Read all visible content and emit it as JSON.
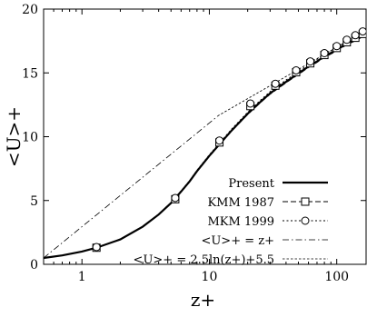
{
  "chart_data": {
    "type": "line",
    "xlabel": "z+",
    "ylabel": "<U>+",
    "xscale": "log",
    "xlim": [
      0.5,
      170
    ],
    "ylim": [
      0,
      20
    ],
    "xticks": [
      1,
      10,
      100
    ],
    "yticks": [
      0,
      5,
      10,
      15,
      20
    ],
    "grid": false,
    "legend_position": "bottom-right",
    "series": [
      {
        "name": "Present",
        "style": "solid-thick",
        "x": [
          0.5,
          0.7,
          1.0,
          1.3,
          2.0,
          3.0,
          4.0,
          5.0,
          6.0,
          7.0,
          8.0,
          10.0,
          12.0,
          15.0,
          20.0,
          25.0,
          30.0,
          40.0,
          50.0,
          60.0,
          70.0,
          80.0,
          100.0,
          120.0,
          140.0,
          165.0
        ],
        "y": [
          0.5,
          0.7,
          1.0,
          1.3,
          1.95,
          2.95,
          3.9,
          4.8,
          5.7,
          6.5,
          7.3,
          8.5,
          9.4,
          10.5,
          11.8,
          12.7,
          13.4,
          14.3,
          14.95,
          15.5,
          15.9,
          16.3,
          16.8,
          17.3,
          17.6,
          18.0
        ]
      },
      {
        "name": "KMM 1987",
        "style": "dashed-square",
        "marker_x": [
          1.3,
          5.4,
          12.0,
          21.0,
          33.0,
          48.0,
          62.0,
          80.0,
          100.0,
          120.0,
          140.0,
          160.0
        ],
        "marker_y": [
          1.3,
          5.1,
          9.55,
          12.4,
          14.0,
          15.05,
          15.75,
          16.4,
          16.95,
          17.4,
          17.75,
          18.05
        ]
      },
      {
        "name": "MKM 1999",
        "style": "dotted-circle",
        "marker_x": [
          1.3,
          5.4,
          12.0,
          21.0,
          33.0,
          48.0,
          62.0,
          80.0,
          100.0,
          120.0,
          140.0,
          160.0
        ],
        "marker_y": [
          1.35,
          5.2,
          9.7,
          12.6,
          14.15,
          15.2,
          15.9,
          16.55,
          17.1,
          17.6,
          17.95,
          18.25
        ]
      },
      {
        "name": "<U>+ = z+",
        "style": "dash-dot",
        "x": [
          0.5,
          11.6
        ],
        "y": [
          0.5,
          11.6
        ]
      },
      {
        "name": "<U>+ = 2.5ln(z+)+5.5",
        "style": "fine-dashed",
        "x": [
          11.6,
          170.0
        ],
        "y": [
          11.62,
          18.34
        ]
      }
    ]
  }
}
